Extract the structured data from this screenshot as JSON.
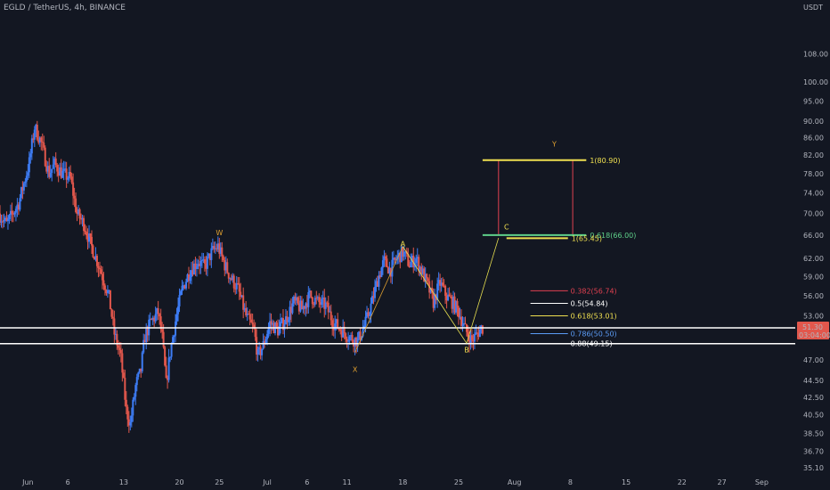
{
  "header": {
    "symbol": "EGLD / TetherUS, 4h, BINANCE"
  },
  "chart_data": {
    "type": "candlestick",
    "title": "EGLD / TetherUS, 4h, BINANCE",
    "currency": "USDT",
    "y_scale": "log",
    "ylim": [
      34.5,
      125
    ],
    "y_ticks": [
      35.1,
      36.7,
      38.5,
      40.5,
      42.5,
      44.5,
      47.0,
      53.0,
      56.0,
      59.0,
      62.0,
      66.0,
      70.0,
      74.0,
      78.0,
      82.0,
      86.0,
      90.0,
      95.0,
      100.0,
      108.0
    ],
    "x_ticks": [
      {
        "label": "Jun",
        "day": 0
      },
      {
        "label": "6",
        "day": 5
      },
      {
        "label": "13",
        "day": 12
      },
      {
        "label": "20",
        "day": 19
      },
      {
        "label": "25",
        "day": 24
      },
      {
        "label": "Jul",
        "day": 30
      },
      {
        "label": "6",
        "day": 35
      },
      {
        "label": "11",
        "day": 40
      },
      {
        "label": "18",
        "day": 47
      },
      {
        "label": "25",
        "day": 54
      },
      {
        "label": "Aug",
        "day": 61
      },
      {
        "label": "8",
        "day": 68
      },
      {
        "label": "15",
        "day": 75
      },
      {
        "label": "22",
        "day": 82
      },
      {
        "label": "27",
        "day": 87
      },
      {
        "label": "Sep",
        "day": 92
      }
    ],
    "x_range_days": [
      -3.5,
      96.2
    ],
    "price_path": [
      {
        "day": -3.5,
        "price": 70.0
      },
      {
        "day": -2.5,
        "price": 68.0
      },
      {
        "day": -1.0,
        "price": 72.0
      },
      {
        "day": 0.3,
        "price": 80.0
      },
      {
        "day": 1.0,
        "price": 88.5
      },
      {
        "day": 1.8,
        "price": 85.0
      },
      {
        "day": 2.8,
        "price": 78.0
      },
      {
        "day": 3.5,
        "price": 80.0
      },
      {
        "day": 4.5,
        "price": 78.0
      },
      {
        "day": 5.5,
        "price": 77.0
      },
      {
        "day": 6.3,
        "price": 70.0
      },
      {
        "day": 7.2,
        "price": 68.0
      },
      {
        "day": 8.0,
        "price": 64.5
      },
      {
        "day": 9.0,
        "price": 61.0
      },
      {
        "day": 10.3,
        "price": 56.0
      },
      {
        "day": 11.0,
        "price": 50.5
      },
      {
        "day": 11.8,
        "price": 47.5
      },
      {
        "day": 12.5,
        "price": 41.0
      },
      {
        "day": 13.0,
        "price": 39.5
      },
      {
        "day": 13.7,
        "price": 44.0
      },
      {
        "day": 14.3,
        "price": 45.5
      },
      {
        "day": 14.8,
        "price": 50.0
      },
      {
        "day": 15.5,
        "price": 52.0
      },
      {
        "day": 16.5,
        "price": 53.5
      },
      {
        "day": 17.0,
        "price": 50.0
      },
      {
        "day": 17.5,
        "price": 44.0
      },
      {
        "day": 18.0,
        "price": 48.0
      },
      {
        "day": 18.7,
        "price": 52.5
      },
      {
        "day": 19.5,
        "price": 57.0
      },
      {
        "day": 20.5,
        "price": 60.0
      },
      {
        "day": 21.5,
        "price": 61.5
      },
      {
        "day": 22.3,
        "price": 60.5
      },
      {
        "day": 23.2,
        "price": 63.0
      },
      {
        "day": 24.0,
        "price": 64.0
      },
      {
        "day": 24.8,
        "price": 61.0
      },
      {
        "day": 25.5,
        "price": 59.0
      },
      {
        "day": 26.5,
        "price": 57.0
      },
      {
        "day": 27.5,
        "price": 53.0
      },
      {
        "day": 28.5,
        "price": 51.0
      },
      {
        "day": 29.0,
        "price": 47.5
      },
      {
        "day": 29.7,
        "price": 49.0
      },
      {
        "day": 30.5,
        "price": 52.0
      },
      {
        "day": 31.5,
        "price": 51.0
      },
      {
        "day": 32.5,
        "price": 52.5
      },
      {
        "day": 33.5,
        "price": 55.0
      },
      {
        "day": 34.5,
        "price": 54.0
      },
      {
        "day": 35.5,
        "price": 56.0
      },
      {
        "day": 36.5,
        "price": 55.0
      },
      {
        "day": 37.5,
        "price": 54.5
      },
      {
        "day": 38.5,
        "price": 52.0
      },
      {
        "day": 39.5,
        "price": 51.0
      },
      {
        "day": 40.5,
        "price": 50.0
      },
      {
        "day": 41.5,
        "price": 49.5
      },
      {
        "day": 42.5,
        "price": 52.0
      },
      {
        "day": 43.3,
        "price": 55.0
      },
      {
        "day": 44.0,
        "price": 58.5
      },
      {
        "day": 44.8,
        "price": 61.5
      },
      {
        "day": 45.6,
        "price": 60.0
      },
      {
        "day": 46.4,
        "price": 62.0
      },
      {
        "day": 47.2,
        "price": 63.0
      },
      {
        "day": 48.0,
        "price": 61.0
      },
      {
        "day": 48.8,
        "price": 62.0
      },
      {
        "day": 49.5,
        "price": 60.0
      },
      {
        "day": 50.3,
        "price": 57.5
      },
      {
        "day": 51.0,
        "price": 55.0
      },
      {
        "day": 51.8,
        "price": 58.0
      },
      {
        "day": 52.6,
        "price": 56.0
      },
      {
        "day": 53.4,
        "price": 55.0
      },
      {
        "day": 54.2,
        "price": 53.5
      },
      {
        "day": 55.0,
        "price": 51.0
      },
      {
        "day": 55.8,
        "price": 49.5
      },
      {
        "day": 56.5,
        "price": 50.5
      },
      {
        "day": 57.0,
        "price": 51.3
      }
    ],
    "horizontal_lines": [
      51.3,
      49.15
    ],
    "wave_points": [
      {
        "label": "W",
        "day": 24.0,
        "price": 66.0,
        "color": "#e0a030"
      },
      {
        "label": "X",
        "day": 41.0,
        "price": 45.5,
        "color": "#e0a030"
      },
      {
        "label": "A",
        "day": 47.0,
        "price": 64.0,
        "color": "#f0e050"
      },
      {
        "label": "B",
        "day": 55.0,
        "price": 48.0,
        "color": "#f0e050"
      },
      {
        "label": "C",
        "day": 60.0,
        "price": 67.0,
        "color": "#f0e050"
      },
      {
        "label": "Y",
        "day": 66.0,
        "price": 84.0,
        "color": "#e0a030"
      }
    ],
    "wave_lines": [
      {
        "from": [
          41.0,
          48.0
        ],
        "to": [
          47.0,
          64.0
        ],
        "color": "#e0a030"
      },
      {
        "from": [
          47.0,
          64.0
        ],
        "to": [
          55.0,
          49.2
        ],
        "color": "#e8e050"
      },
      {
        "from": [
          55.0,
          49.2
        ],
        "to": [
          59.0,
          65.5
        ],
        "color": "#e8e050"
      }
    ],
    "target_box": {
      "day_start": 59.0,
      "day_end": 68.3,
      "price_top": 80.9,
      "price_bottom": 66.0
    },
    "fib_levels": [
      {
        "label": "1(80.90)",
        "price": 80.9,
        "color": "#f0e050",
        "day_start": 57.0,
        "day_end": 70.0
      },
      {
        "label": "0.618(66.00)",
        "price": 66.0,
        "color": "#5fd08a",
        "day_start": 57.0,
        "day_end": 70.0
      },
      {
        "label": "1(65.45)",
        "price": 65.45,
        "color": "#f0e050",
        "day_start": 60.0,
        "day_end": 67.7
      },
      {
        "label": "0.382(56.74)",
        "price": 56.74,
        "color": "#e04050",
        "day_start": 63.0,
        "day_end": 67.7
      },
      {
        "label": "0.5(54.84)",
        "price": 54.84,
        "color": "#ffffff",
        "day_start": 63.0,
        "day_end": 67.7
      },
      {
        "label": "0.618(53.01)",
        "price": 53.01,
        "color": "#f0e050",
        "day_start": 63.0,
        "day_end": 67.7
      },
      {
        "label": "0.786(50.50)",
        "price": 50.5,
        "color": "#5b9cf6",
        "day_start": 63.0,
        "day_end": 67.7
      },
      {
        "label": "0.88(49.15)",
        "price": 49.15,
        "color": "#ffffff",
        "day_start": 63.0,
        "day_end": 67.7
      }
    ],
    "current_price": {
      "value": "51.30",
      "countdown": "03:04:00",
      "price": 51.3
    }
  },
  "colors": {
    "background": "#131722",
    "up": "#3d7cf5",
    "down": "#e2574c",
    "text": "#b2b5be",
    "price_tag": "#e2574c"
  }
}
